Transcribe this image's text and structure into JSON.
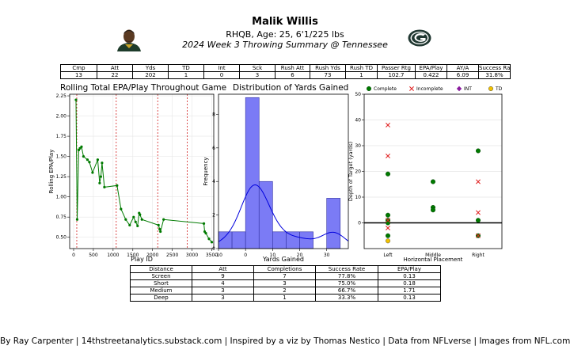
{
  "header": {
    "title": "Malik Willis",
    "subtitle": "RHQB, Age: 25, 6'1/225 lbs",
    "summary": "2024 Week 3 Throwing Summary @ Tennessee"
  },
  "stats_table": {
    "headers": [
      "Cmp",
      "Att",
      "Yds",
      "TD",
      "Int",
      "Sck",
      "Rush Att",
      "Rush Yds",
      "Rush TD",
      "Passer Rtg",
      "EPA/Play",
      "AY/A",
      "Success Rate"
    ],
    "values": [
      "13",
      "22",
      "202",
      "1",
      "0",
      "3",
      "6",
      "73",
      "1",
      "102.7",
      "0.422",
      "6.09",
      "31.8%"
    ]
  },
  "distance_table": {
    "headers": [
      "Distance",
      "Att",
      "Completions",
      "Success Rate",
      "EPA/Play"
    ],
    "rows": [
      [
        "Screen",
        "9",
        "7",
        "77.8%",
        "0.13"
      ],
      [
        "Short",
        "4",
        "3",
        "75.0%",
        "0.18"
      ],
      [
        "Medium",
        "3",
        "2",
        "66.7%",
        "1.71"
      ],
      [
        "Deep",
        "3",
        "1",
        "33.3%",
        "0.13"
      ]
    ]
  },
  "footer": "By Ray Carpenter | 14thstreetanalytics.substack.com | Inspired by a viz by Thomas Nestico | Data from NFLverse | Images from NFL.com",
  "colors": {
    "line": "#007a00",
    "hist_fill": "#7b7bf5",
    "kde": "#0000dd",
    "complete": "#007a00",
    "incomplete": "#e02020",
    "int": "#8a1a9e",
    "td": "#f2c200",
    "quarter_line": "#cc0000"
  },
  "chart_data": [
    {
      "type": "line",
      "title": "Rolling Total EPA/Play Throughout Game",
      "xlabel": "Play ID",
      "ylabel": "Rolling EPA/Play",
      "xlim": [
        -100,
        3550
      ],
      "ylim": [
        0.36,
        2.27
      ],
      "xticks": [
        0,
        500,
        1000,
        1500,
        2000,
        2500,
        3000,
        3500
      ],
      "yticks": [
        0.5,
        0.75,
        1.0,
        1.25,
        1.5,
        1.75,
        2.0,
        2.25
      ],
      "ytick_labels": [
        "0.50",
        "0.75",
        "1.00",
        "1.25",
        "1.50",
        "1.75",
        "2.00",
        "2.25"
      ],
      "quarter_lines": [
        80,
        1080,
        2130,
        2880
      ],
      "x": [
        60,
        90,
        130,
        160,
        200,
        250,
        350,
        400,
        480,
        610,
        660,
        690,
        720,
        780,
        1100,
        1200,
        1320,
        1420,
        1520,
        1570,
        1620,
        1660,
        1680,
        1730,
        2150,
        2180,
        2200,
        2280,
        3300,
        3320,
        3350,
        3430,
        3500
      ],
      "y": [
        2.2,
        0.72,
        1.58,
        1.6,
        1.62,
        1.5,
        1.46,
        1.43,
        1.3,
        1.46,
        1.17,
        1.25,
        1.42,
        1.12,
        1.14,
        0.85,
        0.72,
        0.65,
        0.75,
        0.69,
        0.64,
        0.8,
        0.78,
        0.72,
        0.65,
        0.6,
        0.57,
        0.72,
        0.67,
        0.57,
        0.55,
        0.48,
        0.44
      ],
      "grid": true
    },
    {
      "type": "bar",
      "title": "Distribution of Yards Gained",
      "xlabel": "Yards Gained",
      "ylabel": "Frequency",
      "xlim": [
        -10,
        38
      ],
      "ylim": [
        0,
        9.2
      ],
      "xticks": [
        -10,
        0,
        10,
        20,
        30
      ],
      "yticks": [
        0,
        2,
        4,
        6,
        8
      ],
      "bin_edges": [
        -10,
        -5,
        0,
        5,
        10,
        15,
        20,
        25,
        30,
        35
      ],
      "counts": [
        1,
        1,
        9,
        4,
        1,
        1,
        1,
        0,
        3
      ],
      "kde_peak": 3.8
    },
    {
      "type": "scatter",
      "xlabel": "Horizontal Placement",
      "ylabel": "Depth of Target (yards)",
      "categories": [
        "Left",
        "Middle",
        "Right"
      ],
      "ylim": [
        -10,
        50
      ],
      "yticks": [
        0,
        10,
        20,
        30,
        40,
        50
      ],
      "legend_position": "top",
      "series": [
        {
          "name": "Complete",
          "points": [
            [
              "Left",
              19
            ],
            [
              "Left",
              3
            ],
            [
              "Left",
              1
            ],
            [
              "Left",
              0
            ],
            [
              "Left",
              -5
            ],
            [
              "Middle",
              16
            ],
            [
              "Middle",
              6
            ],
            [
              "Middle",
              5
            ],
            [
              "Right",
              28
            ],
            [
              "Right",
              1
            ],
            [
              "Right",
              -5
            ]
          ]
        },
        {
          "name": "Incomplete",
          "points": [
            [
              "Left",
              38
            ],
            [
              "Left",
              26
            ],
            [
              "Left",
              1
            ],
            [
              "Left",
              -2
            ],
            [
              "Right",
              16
            ],
            [
              "Right",
              4
            ],
            [
              "Right",
              -5
            ]
          ]
        },
        {
          "name": "INT",
          "points": []
        },
        {
          "name": "TD",
          "points": [
            [
              "Left",
              -7
            ]
          ]
        }
      ]
    }
  ]
}
